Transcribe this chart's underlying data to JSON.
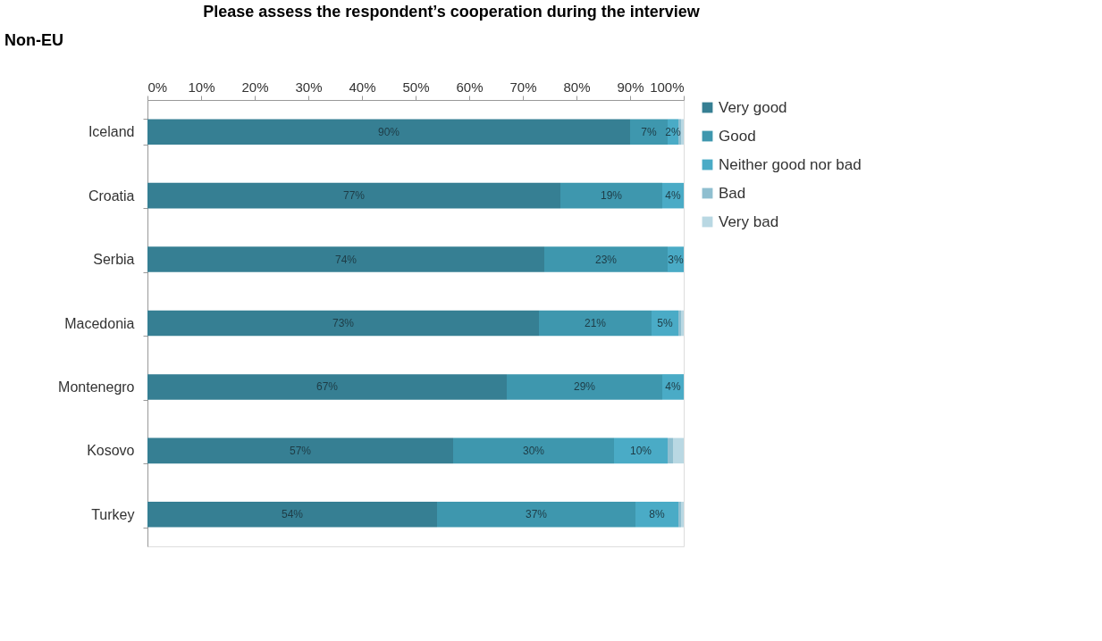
{
  "chart_data": {
    "type": "bar",
    "orientation": "horizontal",
    "stacked": true,
    "title": "Please assess the respondent’s cooperation during the interview",
    "annotations": [
      "Non-EU"
    ],
    "categories": [
      "Iceland",
      "Croatia",
      "Serbia",
      "Macedonia",
      "Montenegro",
      "Kosovo",
      "Turkey"
    ],
    "series": [
      {
        "name": "Very good",
        "color": "#367f93",
        "values": [
          90,
          77,
          74,
          73,
          67,
          57,
          54
        ],
        "value_labels": [
          "90%",
          "77%",
          "74%",
          "73%",
          "67%",
          "57%",
          "54%"
        ]
      },
      {
        "name": "Good",
        "color": "#3e97ae",
        "values": [
          7,
          19,
          23,
          21,
          29,
          30,
          37
        ],
        "value_labels": [
          "7%",
          "19%",
          "23%",
          "21%",
          "29%",
          "30%",
          "37%"
        ]
      },
      {
        "name": "Neither good nor bad",
        "color": "#4aabc6",
        "values": [
          2,
          4,
          3,
          5,
          4,
          10,
          8
        ],
        "value_labels": [
          "2%",
          "4%",
          "3%",
          "5%",
          "4%",
          "10%",
          "8%"
        ]
      },
      {
        "name": "Bad",
        "color": "#8fbfd0",
        "values": [
          0.5,
          0,
          0,
          0.5,
          0,
          1,
          0.5
        ],
        "value_labels": [
          null,
          null,
          null,
          null,
          null,
          null,
          null
        ]
      },
      {
        "name": "Very bad",
        "color": "#b9d8e3",
        "values": [
          0.5,
          0,
          0,
          0.5,
          0,
          2,
          0.5
        ],
        "value_labels": [
          null,
          null,
          null,
          null,
          null,
          null,
          null
        ]
      }
    ],
    "xlim": [
      0,
      100
    ],
    "xticks": [
      {
        "value": 0,
        "label": "0%"
      },
      {
        "value": 10,
        "label": "10%"
      },
      {
        "value": 20,
        "label": "20%"
      },
      {
        "value": 30,
        "label": "30%"
      },
      {
        "value": 40,
        "label": "40%"
      },
      {
        "value": 50,
        "label": "50%"
      },
      {
        "value": 60,
        "label": "60%"
      },
      {
        "value": 70,
        "label": "70%"
      },
      {
        "value": 80,
        "label": "80%"
      },
      {
        "value": 90,
        "label": "90%"
      },
      {
        "value": 100,
        "label": "100%"
      }
    ],
    "grid": false,
    "legend": "right"
  }
}
